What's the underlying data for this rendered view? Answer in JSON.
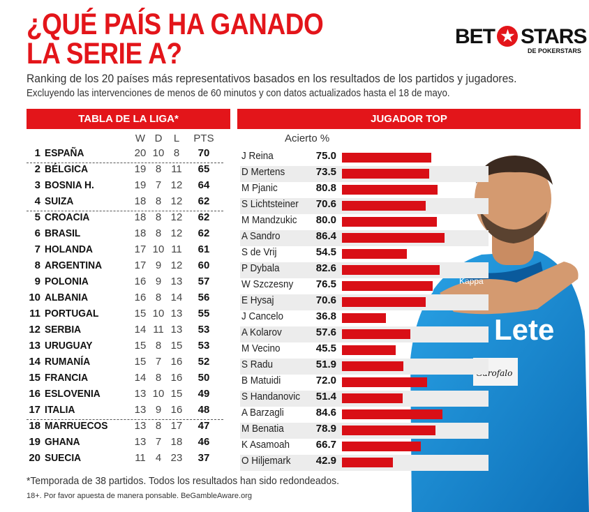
{
  "title_lines": [
    "¿QUÉ PAÍS HA GANADO",
    "LA SERIE A?"
  ],
  "logo": {
    "left": "BET",
    "right": "STARS",
    "sub": "DE POKERSTARS",
    "star_icon": "star-icon"
  },
  "subtitle1": "Ranking de los 20 países más representativos basados en los resultados de los partidos y jugadores.",
  "subtitle2": "Excluyendo las intervenciones de menos de 60 minutos y con datos actualizados hasta el 18 de mayo.",
  "league": {
    "header": "TABLA DE LA LIGA*",
    "columns": {
      "w": "W",
      "d": "D",
      "l": "L",
      "pts": "PTS"
    },
    "rows": [
      {
        "rank": "1",
        "country": "ESPAÑA",
        "w": "20",
        "d": "10",
        "l": "8",
        "pts": "70"
      },
      {
        "rank": "2",
        "country": "BÉLGICA",
        "w": "19",
        "d": "8",
        "l": "11",
        "pts": "65"
      },
      {
        "rank": "3",
        "country": "BOSNIA H.",
        "w": "19",
        "d": "7",
        "l": "12",
        "pts": "64"
      },
      {
        "rank": "4",
        "country": "SUIZA",
        "w": "18",
        "d": "8",
        "l": "12",
        "pts": "62"
      },
      {
        "rank": "5",
        "country": "CROACIA",
        "w": "18",
        "d": "8",
        "l": "12",
        "pts": "62"
      },
      {
        "rank": "6",
        "country": "BRASIL",
        "w": "18",
        "d": "8",
        "l": "12",
        "pts": "62"
      },
      {
        "rank": "7",
        "country": "HOLANDA",
        "w": "17",
        "d": "10",
        "l": "11",
        "pts": "61"
      },
      {
        "rank": "8",
        "country": "ARGENTINA",
        "w": "17",
        "d": "9",
        "l": "12",
        "pts": "60"
      },
      {
        "rank": "9",
        "country": "POLONIA",
        "w": "16",
        "d": "9",
        "l": "13",
        "pts": "57"
      },
      {
        "rank": "10",
        "country": "ALBANIA",
        "w": "16",
        "d": "8",
        "l": "14",
        "pts": "56"
      },
      {
        "rank": "11",
        "country": "PORTUGAL",
        "w": "15",
        "d": "10",
        "l": "13",
        "pts": "55"
      },
      {
        "rank": "12",
        "country": "SERBIA",
        "w": "14",
        "d": "11",
        "l": "13",
        "pts": "53"
      },
      {
        "rank": "13",
        "country": "URUGUAY",
        "w": "15",
        "d": "8",
        "l": "15",
        "pts": "53"
      },
      {
        "rank": "14",
        "country": "RUMANÍA",
        "w": "15",
        "d": "7",
        "l": "16",
        "pts": "52"
      },
      {
        "rank": "15",
        "country": "FRANCIA",
        "w": "14",
        "d": "8",
        "l": "16",
        "pts": "50"
      },
      {
        "rank": "16",
        "country": "ESLOVENIA",
        "w": "13",
        "d": "10",
        "l": "15",
        "pts": "49"
      },
      {
        "rank": "17",
        "country": "ITALIA",
        "w": "13",
        "d": "9",
        "l": "16",
        "pts": "48"
      },
      {
        "rank": "18",
        "country": "MARRUECOS",
        "w": "13",
        "d": "8",
        "l": "17",
        "pts": "47"
      },
      {
        "rank": "19",
        "country": "GHANA",
        "w": "13",
        "d": "7",
        "l": "18",
        "pts": "46"
      },
      {
        "rank": "20",
        "country": "SUECIA",
        "w": "11",
        "d": "4",
        "l": "23",
        "pts": "37"
      }
    ],
    "separators_after_ranks": [
      1,
      4,
      17
    ]
  },
  "players": {
    "header": "JUGADOR TOP",
    "column_label": "Acierto %"
  },
  "chart_data": {
    "type": "bar",
    "orientation": "horizontal",
    "categories": [
      "J Reina",
      "D Mertens",
      "M Pjanic",
      "S Lichtsteiner",
      "M Mandzukic",
      "A Sandro",
      "S de Vrij",
      "P Dybala",
      "W Szczesny",
      "E Hysaj",
      "J Cancelo",
      "A Kolarov",
      "M Vecino",
      "S Radu",
      "B Matuidi",
      "S Handanovic",
      "A Barzagli",
      "M Benatia",
      "K Asamoah",
      "O Hiljemark"
    ],
    "values": [
      75.0,
      73.5,
      80.8,
      70.6,
      80.0,
      86.4,
      54.5,
      82.6,
      76.5,
      70.6,
      36.8,
      57.6,
      45.5,
      51.9,
      72.0,
      51.4,
      84.6,
      78.9,
      66.7,
      42.9
    ],
    "value_labels": [
      "75.0",
      "73.5",
      "80.8",
      "70.6",
      "80.0",
      "86.4",
      "54.5",
      "82.6",
      "76.5",
      "70.6",
      "36.8",
      "57.6",
      "45.5",
      "51.9",
      "72.0",
      "51.4",
      "84.6",
      "78.9",
      "66.7",
      "42.9"
    ],
    "xlim": [
      0,
      100
    ],
    "bar_color": "#d90f16"
  },
  "colors": {
    "accent": "#e3151a",
    "row_shade": "#ececec"
  },
  "footnote": "*Temporada de 38 partidos. Todos los resultados han sido redondeados.",
  "disclaimer": "18+. Por favor apuesta de manera ponsable. BeGambleAware.org",
  "photo": {
    "shirt_sponsor": "Lete",
    "shirt_brand": "Kappa",
    "patch_text": "Garofalo"
  }
}
